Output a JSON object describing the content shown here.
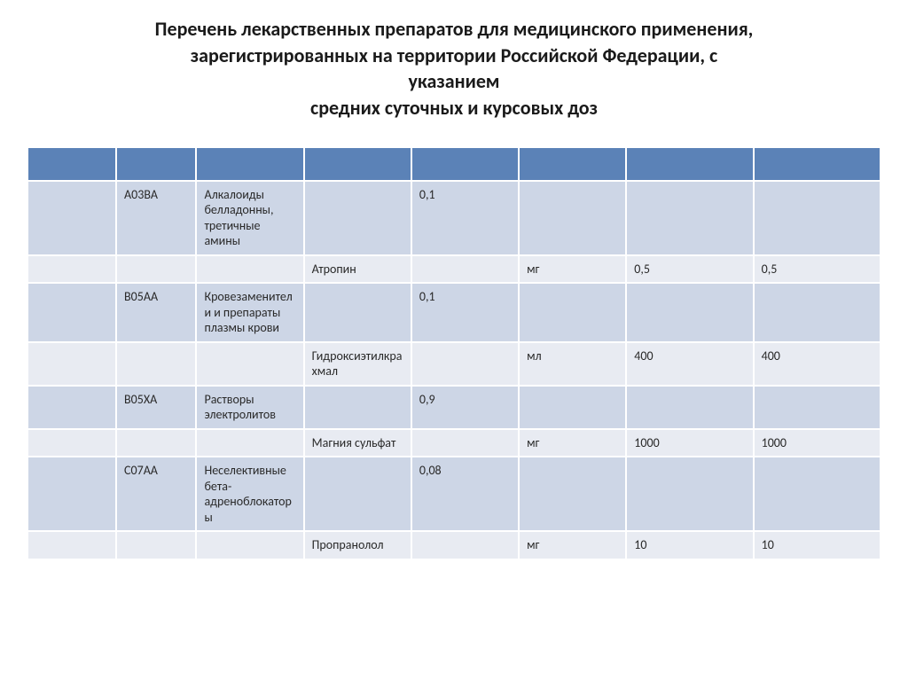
{
  "title_lines": [
    "Перечень лекарственных препаратов для медицинского применения,",
    "зарегистрированных на территории Российской Федерации, с",
    "указанием",
    "средних суточных и курсовых доз"
  ],
  "table": {
    "type": "table",
    "columns_count": 8,
    "header_bg": "#5b82b7",
    "row_odd_bg": "#cdd6e6",
    "row_even_bg": "#e8ebf2",
    "border_color": "#ffffff",
    "col_widths_pct": [
      10.4,
      9.4,
      12.6,
      12.6,
      12.6,
      12.6,
      14.9,
      14.9
    ],
    "font_size": 14,
    "text_color": "#2a2a2a",
    "rows": [
      [
        "",
        "A03BA",
        "Алкалоиды белладонны, третичные амины",
        "",
        "0,1",
        "",
        "",
        ""
      ],
      [
        "",
        "",
        "",
        "Атропин",
        "",
        "мг",
        "0,5",
        "0,5"
      ],
      [
        "",
        "B05AA",
        "Кровезаменители и препараты плазмы крови",
        "",
        "0,1",
        "",
        "",
        ""
      ],
      [
        "",
        "",
        "",
        "Гидроксиэтилкрахмал",
        "",
        "мл",
        "400",
        "400"
      ],
      [
        "",
        "B05XA",
        "Растворы электролитов",
        "",
        "0,9",
        "",
        "",
        ""
      ],
      [
        "",
        "",
        "",
        "Магния сульфат",
        "",
        "мг",
        "1000",
        "1000"
      ],
      [
        "",
        "C07AA",
        "Неселективные бета-адреноблокаторы",
        "",
        "0,08",
        "",
        "",
        ""
      ],
      [
        "",
        "",
        "",
        "Пропранолол",
        "",
        "мг",
        "10",
        "10"
      ]
    ]
  }
}
